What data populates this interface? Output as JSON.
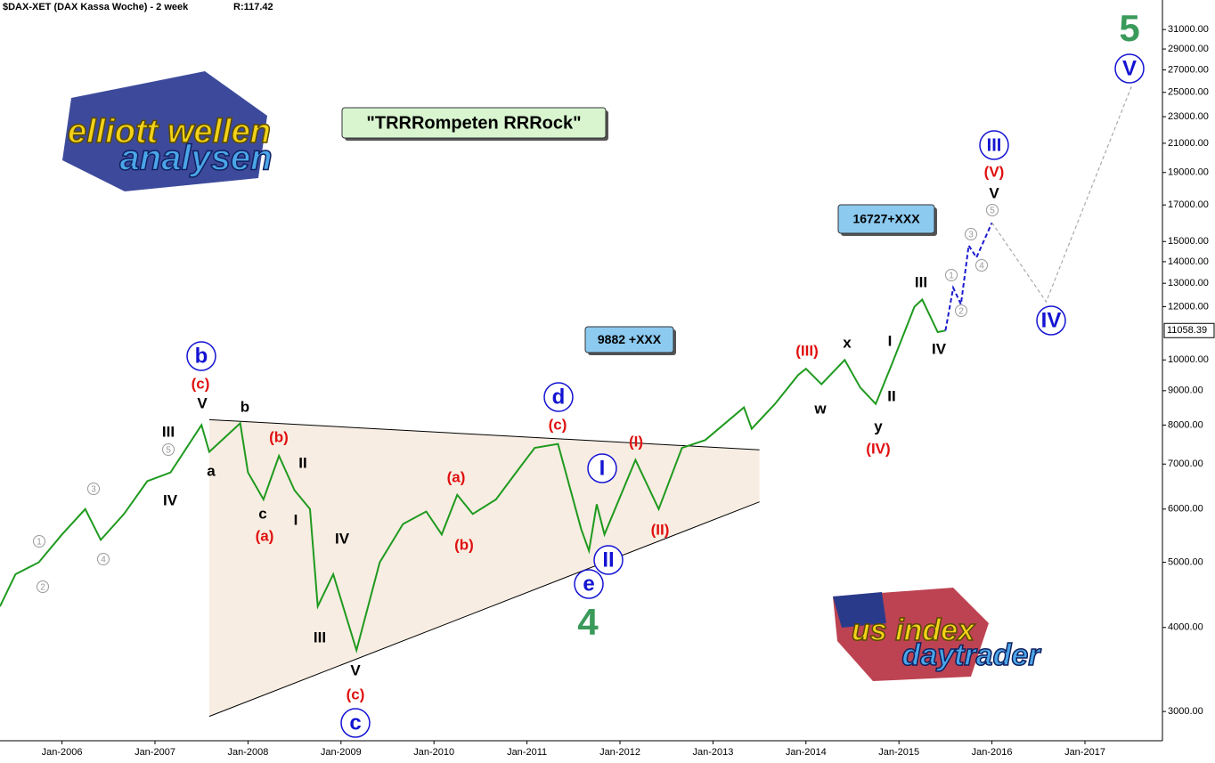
{
  "header": {
    "title": "$DAX-XET (DAX Kassa Woche) - 2 week",
    "info": "R:117.42"
  },
  "chart_data": {
    "type": "line",
    "color": "#1f9a1f",
    "log_scale": true,
    "x": [
      "2005-05",
      "2005-07",
      "2005-10",
      "2006-01",
      "2006-04",
      "2006-06",
      "2006-09",
      "2006-12",
      "2007-03",
      "2007-07",
      "2007-08",
      "2007-12",
      "2008-01",
      "2008-03",
      "2008-05",
      "2008-07",
      "2008-09",
      "2008-10",
      "2008-12",
      "2009-03",
      "2009-06",
      "2009-09",
      "2009-12",
      "2010-02",
      "2010-04",
      "2010-06",
      "2010-09",
      "2010-12",
      "2011-02",
      "2011-05",
      "2011-08",
      "2011-09",
      "2011-10",
      "2011-11",
      "2012-03",
      "2012-06",
      "2012-09",
      "2012-12",
      "2013-05",
      "2013-06",
      "2013-09",
      "2013-12",
      "2014-01",
      "2014-03",
      "2014-06",
      "2014-08",
      "2014-10",
      "2014-12",
      "2015-03",
      "2015-04",
      "2015-06",
      "2015-07"
    ],
    "values": [
      4300,
      4800,
      5000,
      5500,
      6000,
      5400,
      5900,
      6600,
      6800,
      8000,
      7300,
      8050,
      6800,
      6200,
      7200,
      6400,
      6000,
      4300,
      4800,
      3700,
      5000,
      5700,
      5950,
      5500,
      6300,
      5900,
      6200,
      6900,
      7400,
      7500,
      5600,
      5200,
      6100,
      5500,
      7100,
      6000,
      7400,
      7600,
      8500,
      7900,
      8600,
      9500,
      9700,
      9200,
      10000,
      9100,
      8600,
      9800,
      12000,
      12300,
      11000,
      11058.39
    ],
    "last_price": {
      "value": 11058.39,
      "label": "11058.39"
    },
    "projections": [
      {
        "color": "#1a1ad0",
        "x": [
          "2015-07",
          "2015-08",
          "2015-09",
          "2015-10",
          "2015-11",
          "2016-01"
        ],
        "values": [
          11058.39,
          12800,
          12100,
          14800,
          14200,
          16000
        ]
      },
      {
        "color": "#aaaaaa",
        "x": [
          "2016-01",
          "2016-08",
          "2017-07"
        ],
        "values": [
          16000,
          12200,
          25500
        ]
      }
    ],
    "triangle": {
      "upper": {
        "x": [
          "2007-08",
          "2013-07"
        ],
        "values": [
          8150,
          7350
        ]
      },
      "lower": {
        "x": [
          "2007-08",
          "2013-07"
        ],
        "values": [
          2950,
          6150
        ]
      }
    },
    "xlim": [
      "2005-05",
      "2017-11"
    ],
    "xticks": [
      {
        "value": "2006-01",
        "label": "Jan-2006"
      },
      {
        "value": "2007-01",
        "label": "Jan-2007"
      },
      {
        "value": "2008-01",
        "label": "Jan-2008"
      },
      {
        "value": "2009-01",
        "label": "Jan-2009"
      },
      {
        "value": "2010-01",
        "label": "Jan-2010"
      },
      {
        "value": "2011-01",
        "label": "Jan-2011"
      },
      {
        "value": "2012-01",
        "label": "Jan-2012"
      },
      {
        "value": "2013-01",
        "label": "Jan-2013"
      },
      {
        "value": "2014-01",
        "label": "Jan-2014"
      },
      {
        "value": "2015-01",
        "label": "Jan-2015"
      },
      {
        "value": "2016-01",
        "label": "Jan-2016"
      },
      {
        "value": "2017-01",
        "label": "Jan-2017"
      }
    ],
    "ylim": [
      2714,
      34300
    ],
    "yticks": [
      {
        "value": 3000,
        "label": "3000.00"
      },
      {
        "value": 4000,
        "label": "4000.00"
      },
      {
        "value": 5000,
        "label": "5000.00"
      },
      {
        "value": 6000,
        "label": "6000.00"
      },
      {
        "value": 7000,
        "label": "7000.00"
      },
      {
        "value": 8000,
        "label": "8000.00"
      },
      {
        "value": 9000,
        "label": "9000.00"
      },
      {
        "value": 10000,
        "label": "10000.00"
      },
      {
        "value": 12000,
        "label": "12000.00"
      },
      {
        "value": 13000,
        "label": "13000.00"
      },
      {
        "value": 14000,
        "label": "14000.00"
      },
      {
        "value": 15000,
        "label": "15000.00"
      },
      {
        "value": 17000,
        "label": "17000.00"
      },
      {
        "value": 19000,
        "label": "19000.00"
      },
      {
        "value": 21000,
        "label": "21000.00"
      },
      {
        "value": 23000,
        "label": "23000.00"
      },
      {
        "value": 25000,
        "label": "25000.00"
      },
      {
        "value": 27000,
        "label": "27000.00"
      },
      {
        "value": 29000,
        "label": "29000.00"
      },
      {
        "value": 31000,
        "label": "31000.00"
      }
    ],
    "notes": [
      "\"TRRRompeten RRRock\"",
      "9882 +XXX",
      "16727+XXX"
    ],
    "annotations": [
      {
        "text": "b",
        "color": "#1414d2",
        "style": "circle"
      },
      {
        "text": "(c)",
        "color": "#e01010",
        "style": "text"
      },
      {
        "text": "V",
        "color": "#000000",
        "style": "text"
      },
      {
        "text": "b",
        "color": "#000000",
        "style": "text"
      },
      {
        "text": "a",
        "color": "#000000",
        "style": "text"
      },
      {
        "text": "III",
        "color": "#000000",
        "style": "text"
      },
      {
        "text": "5",
        "color": "#999999",
        "style": "small-circle"
      },
      {
        "text": "IV",
        "color": "#000000",
        "style": "text"
      },
      {
        "text": "3",
        "color": "#999999",
        "style": "small-circle"
      },
      {
        "text": "4",
        "color": "#999999",
        "style": "small-circle"
      },
      {
        "text": "1",
        "color": "#999999",
        "style": "small-circle"
      },
      {
        "text": "2",
        "color": "#999999",
        "style": "small-circle"
      },
      {
        "text": "(b)",
        "color": "#e01010",
        "style": "text"
      },
      {
        "text": "II",
        "color": "#000000",
        "style": "text"
      },
      {
        "text": "c",
        "color": "#000000",
        "style": "text"
      },
      {
        "text": "I",
        "color": "#000000",
        "style": "text"
      },
      {
        "text": "(a)",
        "color": "#e01010",
        "style": "text"
      },
      {
        "text": "IV",
        "color": "#000000",
        "style": "text"
      },
      {
        "text": "III",
        "color": "#000000",
        "style": "text"
      },
      {
        "text": "V",
        "color": "#000000",
        "style": "text"
      },
      {
        "text": "(c)",
        "color": "#e01010",
        "style": "text"
      },
      {
        "text": "c",
        "color": "#1414d2",
        "style": "circle"
      },
      {
        "text": "(a)",
        "color": "#e01010",
        "style": "text"
      },
      {
        "text": "(b)",
        "color": "#e01010",
        "style": "text"
      },
      {
        "text": "d",
        "color": "#1414d2",
        "style": "circle"
      },
      {
        "text": "(c)",
        "color": "#e01010",
        "style": "text"
      },
      {
        "text": "I",
        "color": "#1414d2",
        "style": "circle"
      },
      {
        "text": "II",
        "color": "#1414d2",
        "style": "circle"
      },
      {
        "text": "e",
        "color": "#1414d2",
        "style": "circle"
      },
      {
        "text": "4",
        "color": "#3a9a5a",
        "style": "big"
      },
      {
        "text": "(I)",
        "color": "#e01010",
        "style": "text"
      },
      {
        "text": "(II)",
        "color": "#e01010",
        "style": "text"
      },
      {
        "text": "(III)",
        "color": "#e01010",
        "style": "text"
      },
      {
        "text": "x",
        "color": "#000000",
        "style": "text"
      },
      {
        "text": "w",
        "color": "#000000",
        "style": "text"
      },
      {
        "text": "I",
        "color": "#000000",
        "style": "text"
      },
      {
        "text": "II",
        "color": "#000000",
        "style": "text"
      },
      {
        "text": "y",
        "color": "#000000",
        "style": "text"
      },
      {
        "text": "(IV)",
        "color": "#e01010",
        "style": "text"
      },
      {
        "text": "III",
        "color": "#000000",
        "style": "text"
      },
      {
        "text": "IV",
        "color": "#000000",
        "style": "text"
      },
      {
        "text": "1",
        "color": "#999999",
        "style": "small-circle"
      },
      {
        "text": "2",
        "color": "#999999",
        "style": "small-circle"
      },
      {
        "text": "3",
        "color": "#999999",
        "style": "small-circle"
      },
      {
        "text": "4",
        "color": "#999999",
        "style": "small-circle"
      },
      {
        "text": "5",
        "color": "#999999",
        "style": "small-circle"
      },
      {
        "text": "V",
        "color": "#000000",
        "style": "text"
      },
      {
        "text": "(V)",
        "color": "#e01010",
        "style": "text"
      },
      {
        "text": "III",
        "color": "#1414d2",
        "style": "circle"
      },
      {
        "text": "IV",
        "color": "#1414d2",
        "style": "circle"
      },
      {
        "text": "V",
        "color": "#1414d2",
        "style": "circle"
      },
      {
        "text": "5",
        "color": "#3a9a5a",
        "style": "big"
      }
    ]
  },
  "logos": {
    "left": [
      "elliott wellen",
      "analysen"
    ],
    "right": [
      "us index",
      "daytrader"
    ]
  }
}
